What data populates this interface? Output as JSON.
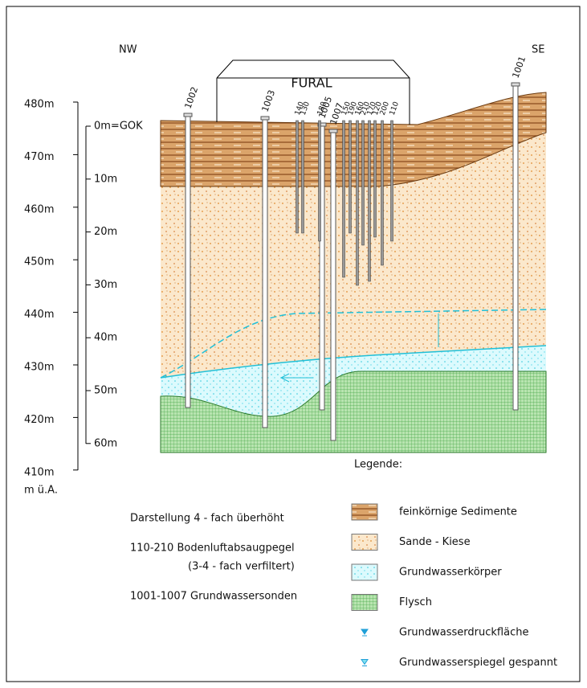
{
  "header": {
    "left": "NW",
    "right": "SE"
  },
  "building": "FURAL",
  "wells": [
    "1002",
    "1003",
    "1005",
    "1007",
    "1001"
  ],
  "probes": [
    "140",
    "130",
    "180",
    "150",
    "190",
    "160",
    "210",
    "170",
    "120",
    "200",
    "110"
  ],
  "elevation_axis": {
    "labels": [
      "480m",
      "470m",
      "460m",
      "450m",
      "440m",
      "430m",
      "420m",
      "410m"
    ],
    "unit": "m ü.A."
  },
  "depth_axis": {
    "labels": [
      "0m=GOK",
      "10m",
      "20m",
      "30m",
      "40m",
      "50m",
      "60m"
    ]
  },
  "legend": {
    "title": "Legende:",
    "items": [
      "feinkörnige Sedimente",
      "Sande - Kiese",
      "Grundwasserkörper",
      "Flysch",
      "Grundwasserdruckfläche",
      "Grundwasserspiegel gespannt"
    ]
  },
  "notes": [
    "Darstellung 4 - fach überhöht",
    "110-210  Bodenluftabsaugpegel",
    "(3-4 - fach verfiltert)",
    "1001-1007 Grundwassersonden"
  ]
}
